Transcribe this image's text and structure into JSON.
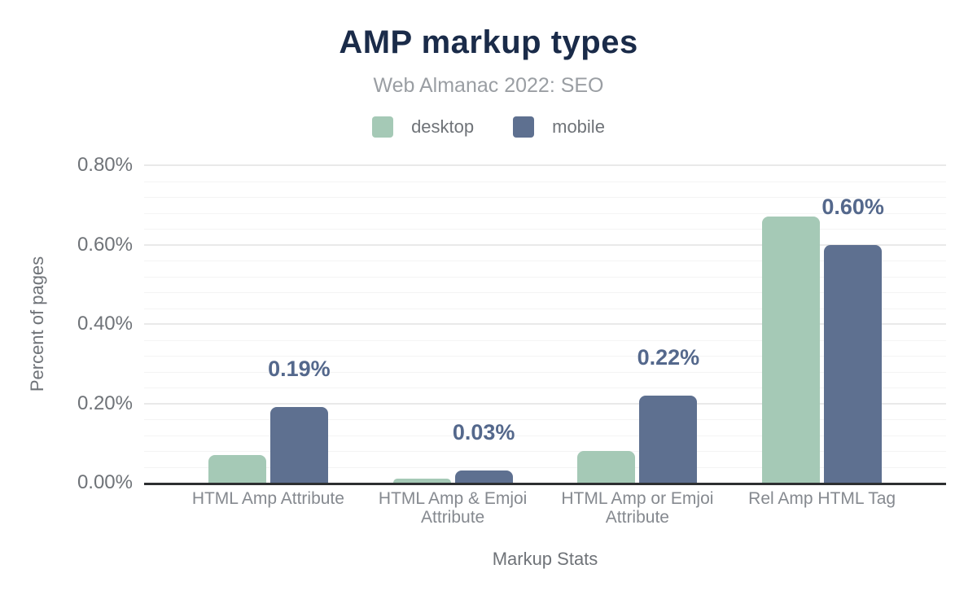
{
  "title": "AMP markup types",
  "subtitle": "Web Almanac 2022: SEO",
  "colors": {
    "title": "#1a2b49",
    "subtitle": "#9a9ea3",
    "axis_text": "#6f7378",
    "category_text": "#85898f",
    "value_label": "#54688c",
    "desktop": "#a5c9b6",
    "mobile": "#5e7090",
    "baseline": "#2d2f31",
    "gridline_major": "#e9e9e9",
    "gridline_minor": "#f4f4f4"
  },
  "chart_data": {
    "type": "bar",
    "title": "AMP markup types",
    "subtitle": "Web Almanac 2022: SEO",
    "categories": [
      "HTML Amp Attribute",
      "HTML Amp & Emjoi Attribute",
      "HTML Amp or Emjoi Attribute",
      "Rel Amp HTML Tag"
    ],
    "series": [
      {
        "name": "desktop",
        "color": "#a5c9b6",
        "values": [
          0.07,
          0.01,
          0.08,
          0.67
        ]
      },
      {
        "name": "mobile",
        "color": "#5e7090",
        "values": [
          0.19,
          0.03,
          0.22,
          0.6
        ]
      }
    ],
    "bar_labels": {
      "series": "mobile",
      "values": [
        "0.19%",
        "0.03%",
        "0.22%",
        "0.60%"
      ]
    },
    "xlabel": "Markup Stats",
    "ylabel": "Percent of pages",
    "ylim": [
      0,
      0.8
    ],
    "yticks": [
      "0.00%",
      "0.20%",
      "0.40%",
      "0.60%",
      "0.80%"
    ],
    "ytick_values": [
      0,
      0.2,
      0.4,
      0.6,
      0.8
    ],
    "grid": {
      "major_step": 0.2,
      "minor_step": 0.04,
      "on": true
    },
    "legend_position": "top"
  }
}
